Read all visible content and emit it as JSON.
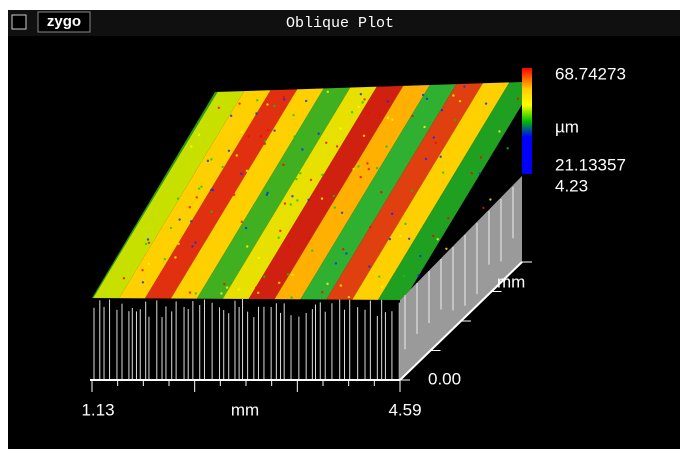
{
  "window": {
    "logo": "zygo",
    "title": "Oblique Plot"
  },
  "colorbar": {
    "max_label": "68.74273",
    "unit_label": "µm",
    "min_label": "21.13357"
  },
  "y_axis": {
    "max_label": "4.23",
    "unit_label": "mm",
    "min_label": "0.00"
  },
  "x_axis": {
    "min_label": "1.13",
    "unit_label": "mm",
    "max_label": "4.59"
  }
}
